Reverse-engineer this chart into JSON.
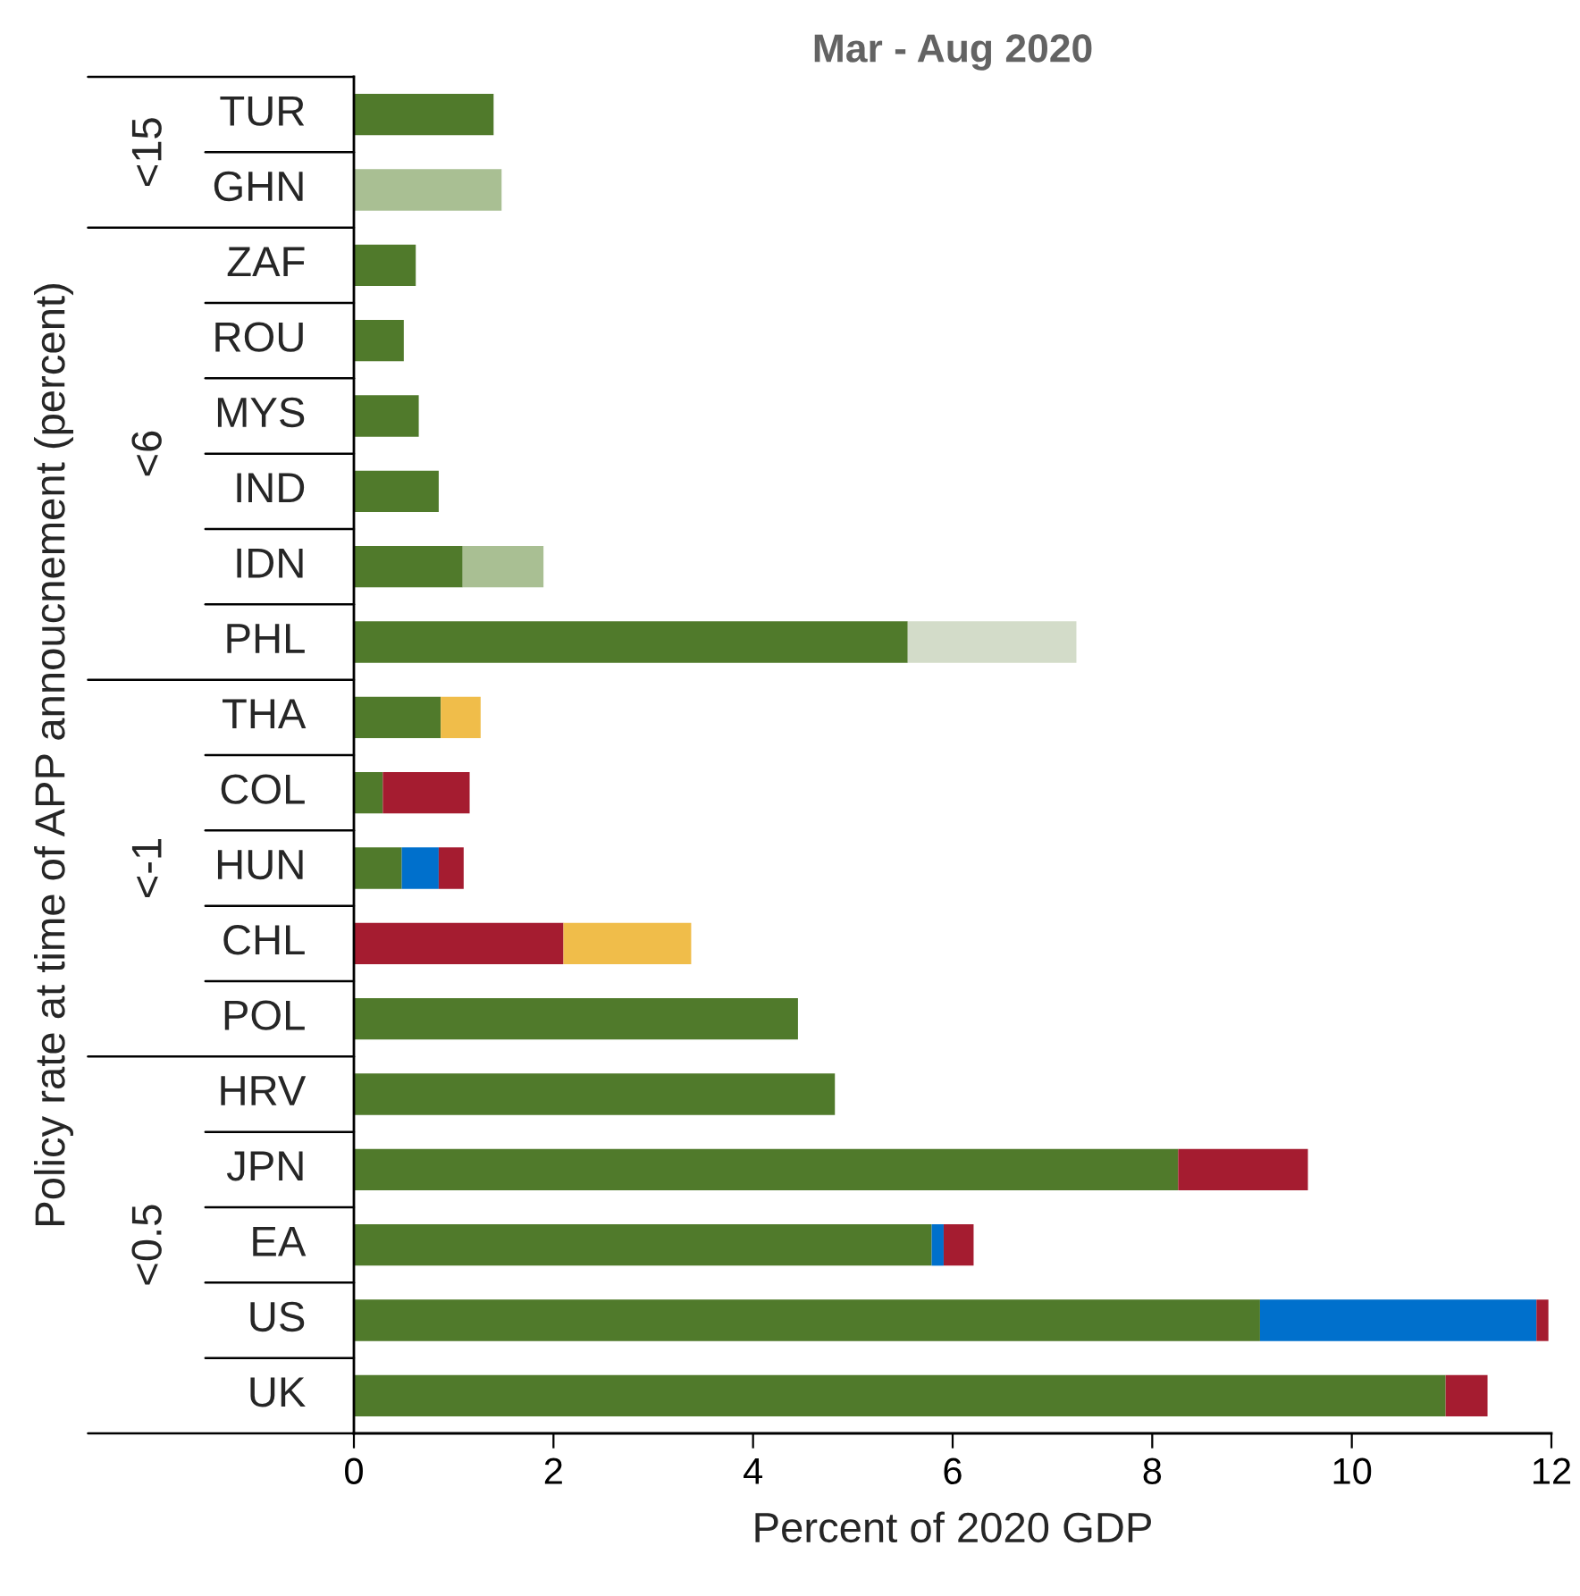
{
  "chart_data": {
    "type": "bar",
    "orientation": "horizontal",
    "stacked": true,
    "title": "Mar - Aug 2020",
    "xlabel": "Percent of 2020 GDP",
    "ylabel": "Policy rate at time of APP annoucnement (percent)",
    "categories": [
      "TUR",
      "GHN",
      "ZAF",
      "ROU",
      "MYS",
      "IND",
      "IDN",
      "PHL",
      "THA",
      "COL",
      "HUN",
      "CHL",
      "POL",
      "HRV",
      "JPN",
      "EA",
      "US",
      "UK"
    ],
    "series": [
      {
        "color": "#507a2b",
        "values": [
          1.4,
          null,
          0.62,
          0.5,
          0.65,
          0.85,
          1.09,
          5.55,
          0.87,
          0.29,
          0.48,
          null,
          4.45,
          4.82,
          8.26,
          5.79,
          9.08,
          10.94
        ]
      },
      {
        "color": "#a9bf93",
        "values": [
          null,
          1.48,
          null,
          null,
          null,
          null,
          0.81,
          null,
          null,
          null,
          null,
          null,
          null,
          null,
          null,
          null,
          null,
          null
        ]
      },
      {
        "color": "#d3dcc9",
        "values": [
          null,
          null,
          null,
          null,
          null,
          null,
          null,
          1.69,
          null,
          null,
          null,
          null,
          null,
          null,
          null,
          null,
          null,
          null
        ]
      },
      {
        "color": "#0070cc",
        "values": [
          null,
          null,
          null,
          null,
          null,
          null,
          null,
          null,
          null,
          null,
          0.37,
          null,
          null,
          null,
          null,
          0.12,
          2.77,
          null
        ]
      },
      {
        "color": "#a51c30",
        "values": [
          null,
          null,
          null,
          null,
          null,
          null,
          null,
          null,
          null,
          0.87,
          0.25,
          2.1,
          null,
          null,
          1.3,
          0.3,
          0.12,
          0.42
        ]
      },
      {
        "color": "#f0bd4a",
        "values": [
          null,
          null,
          null,
          null,
          null,
          null,
          null,
          null,
          0.4,
          null,
          null,
          1.28,
          null,
          null,
          null,
          null,
          null,
          null
        ]
      }
    ],
    "annotations": [
      "<15",
      "<6",
      "<-1",
      "<0.5"
    ],
    "xlim": [
      0,
      12
    ],
    "xticks": [
      0,
      2,
      4,
      6,
      8,
      10,
      12
    ],
    "grid": false,
    "legend": false
  }
}
